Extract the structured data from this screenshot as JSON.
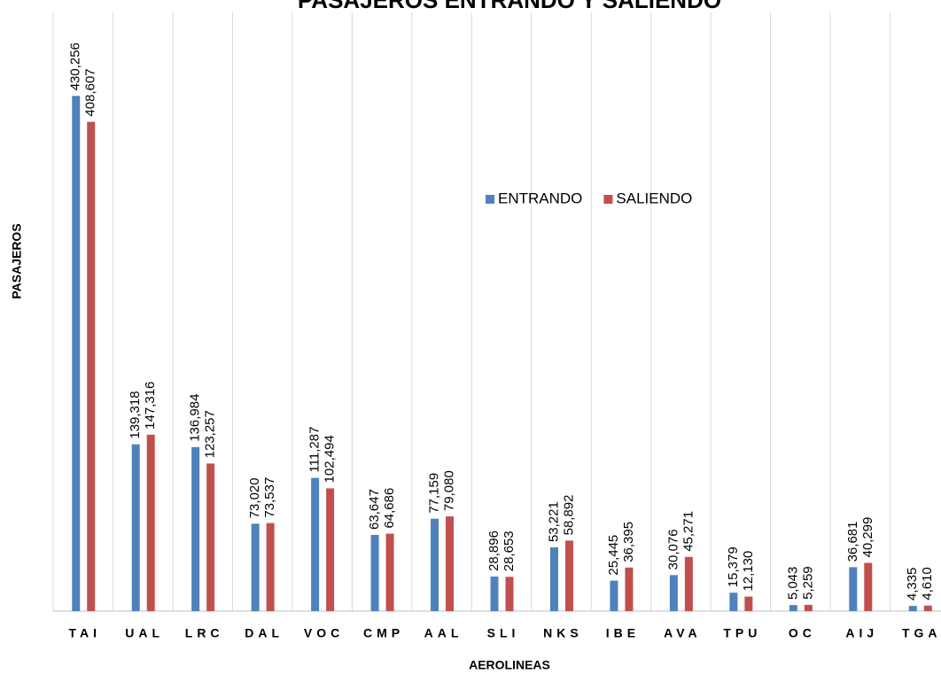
{
  "chart_data": {
    "type": "bar",
    "title": "PASAJEROS ENTRANDO Y SALIENDO",
    "x_label": "AEROLINEAS",
    "y_label": "PASAJEROS",
    "categories": [
      "TAI",
      "UAL",
      "LRC",
      "DAL",
      "VOC",
      "CMP",
      "AAL",
      "SLI",
      "NKS",
      "IBE",
      "AVA",
      "TPU",
      "OC",
      "AIJ",
      "TGA"
    ],
    "series": [
      {
        "name": "ENTRANDO",
        "color": "#4f81bd",
        "values": [
          430256,
          139318,
          136984,
          73020,
          111287,
          63647,
          77159,
          28896,
          53221,
          25445,
          30076,
          15379,
          5043,
          36681,
          4335
        ],
        "value_labels": [
          "430,256",
          "139,318",
          "136,984",
          "73,020",
          "111,287",
          "63,647",
          "77,159",
          "28,896",
          "53,221",
          "25,445",
          "30,076",
          "15,379",
          "5,043",
          "36,681",
          "4,335"
        ]
      },
      {
        "name": "SALIENDO",
        "color": "#c0504d",
        "values": [
          408607,
          147316,
          123257,
          73537,
          102494,
          64686,
          79080,
          28653,
          58892,
          36395,
          45271,
          12130,
          5259,
          40299,
          4610
        ],
        "value_labels": [
          "408,607",
          "147,316",
          "123,257",
          "73,537",
          "102,494",
          "64,686",
          "79,080",
          "28,653",
          "58,892",
          "36,395",
          "45,271",
          "12,130",
          "5,259",
          "40,299",
          "4,610"
        ]
      }
    ],
    "ylim": [
      0,
      500000
    ],
    "grid": true,
    "legend": "center"
  }
}
